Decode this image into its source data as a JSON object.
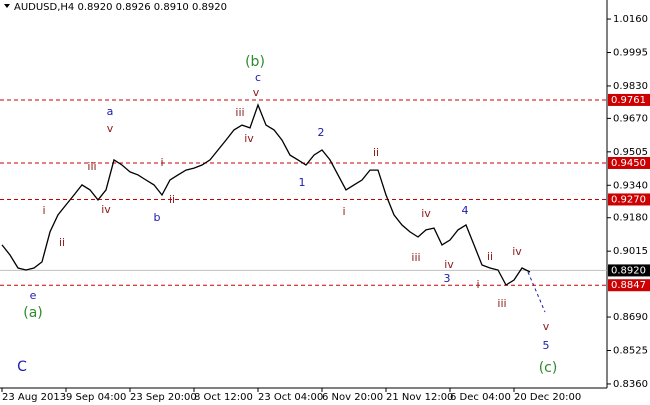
{
  "chart_data": {
    "type": "line",
    "title": "AUDUSD,H4  0.8920 0.8926 0.8910 0.8920",
    "color": "#000000",
    "categories": [
      "23 Aug 2013",
      null,
      null,
      null,
      null,
      null,
      null,
      null,
      "9 Sep 04:00",
      null,
      null,
      null,
      null,
      null,
      null,
      null,
      "23 Sep 20:00",
      null,
      null,
      null,
      null,
      null,
      null,
      null,
      "8 Oct 12:00",
      null,
      null,
      null,
      null,
      null,
      null,
      null,
      "23 Oct 04:00",
      null,
      null,
      null,
      null,
      null,
      null,
      null,
      "6 Nov 20:00",
      null,
      null,
      null,
      null,
      null,
      null,
      null,
      "21 Nov 12:00",
      null,
      null,
      null,
      null,
      null,
      null,
      null,
      "6 Dec 04:00",
      null,
      null,
      null,
      null,
      null,
      null,
      null,
      "20 Dec 20:00",
      null,
      null
    ],
    "values": [
      0.9046,
      0.8996,
      0.8932,
      0.8922,
      0.8932,
      0.8962,
      0.911,
      0.9194,
      0.9243,
      0.9292,
      0.9342,
      0.9317,
      0.9268,
      0.9317,
      0.9465,
      0.944,
      0.9406,
      0.9391,
      0.9366,
      0.9342,
      0.9292,
      0.9366,
      0.9391,
      0.9415,
      0.9425,
      0.944,
      0.9465,
      0.9514,
      0.9563,
      0.9613,
      0.9637,
      0.9623,
      0.9736,
      0.9637,
      0.9613,
      0.9563,
      0.9489,
      0.9465,
      0.944,
      0.9489,
      0.9514,
      0.9465,
      0.9391,
      0.9317,
      0.9342,
      0.9366,
      0.9415,
      0.9415,
      0.9292,
      0.9194,
      0.9144,
      0.911,
      0.9085,
      0.912,
      0.9129,
      0.9046,
      0.907,
      0.912,
      0.9144,
      0.9046,
      0.8947,
      0.8932,
      0.8922,
      0.8848,
      0.8873,
      0.8932,
      0.8912
    ],
    "ylim": [
      0.834,
      1.0254
    ],
    "yticks": [
      {
        "value": 1.016,
        "label": "1.0160"
      },
      0.9995,
      {
        "value": 0.983,
        "label": "0.9830"
      },
      {
        "value": 0.967,
        "label": "0.9670"
      },
      0.9505,
      {
        "value": 0.934,
        "label": "0.9340"
      },
      {
        "value": 0.918,
        "label": "0.9180"
      },
      0.9015,
      {
        "value": 0.869,
        "label": "0.8690"
      },
      0.8525,
      {
        "value": 0.836,
        "label": "0.8360"
      }
    ],
    "levels_color": "#cc0000",
    "levels": [
      {
        "value": 0.9761,
        "label": "0.9761"
      },
      {
        "value": 0.945,
        "label": "0.9450"
      },
      {
        "value": 0.927,
        "label": "0.9270"
      },
      {
        "value": 0.8847,
        "label": "0.8847"
      }
    ],
    "last_price": {
      "value": 0.892,
      "label": "0.8920"
    },
    "annotations": [
      {
        "text": "(b)",
        "color": "#2e8b2e"
      },
      {
        "text": "c",
        "color": "#1a1ab0"
      },
      {
        "text": "v",
        "color": "#8b1a1a"
      },
      {
        "text": "iii",
        "color": "#8b1a1a"
      },
      {
        "text": "iv",
        "color": "#8b1a1a"
      },
      {
        "text": "a",
        "color": "#1a1ab0"
      },
      {
        "text": "v",
        "color": "#8b1a1a"
      },
      {
        "text": "iii",
        "color": "#8b1a1a"
      },
      {
        "text": "iv",
        "color": "#8b1a1a"
      },
      {
        "text": "i",
        "color": "#8b1a1a"
      },
      {
        "text": "ii",
        "color": "#8b1a1a"
      },
      {
        "text": "e",
        "color": "#1a1ab0"
      },
      {
        "text": "(a)",
        "color": "#2e8b2e"
      },
      {
        "text": "C",
        "color": "#1a1ab0"
      },
      {
        "text": "b",
        "color": "#1a1ab0"
      },
      {
        "text": "ii",
        "color": "#8b1a1a"
      },
      {
        "text": "i",
        "color": "#8b1a1a"
      },
      {
        "text": "1",
        "color": "#1a1ab0"
      },
      {
        "text": "2",
        "color": "#1a1ab0"
      },
      {
        "text": "i",
        "color": "#8b1a1a"
      },
      {
        "text": "ii",
        "color": "#8b1a1a"
      },
      {
        "text": "iv",
        "color": "#8b1a1a"
      },
      {
        "text": "4",
        "color": "#1a1ab0"
      },
      {
        "text": "iii",
        "color": "#8b1a1a"
      },
      {
        "text": "iv",
        "color": "#8b1a1a"
      },
      {
        "text": "3",
        "color": "#1a1ab0"
      },
      {
        "text": "i",
        "color": "#8b1a1a"
      },
      {
        "text": "ii",
        "color": "#8b1a1a"
      },
      {
        "text": "iii",
        "color": "#8b1a1a"
      },
      {
        "text": "iv",
        "color": "#8b1a1a"
      },
      {
        "text": "v",
        "color": "#8b1a1a"
      },
      {
        "text": "5",
        "color": "#1a1ab0"
      },
      {
        "text": "(c)",
        "color": "#2e8b2e"
      }
    ]
  }
}
